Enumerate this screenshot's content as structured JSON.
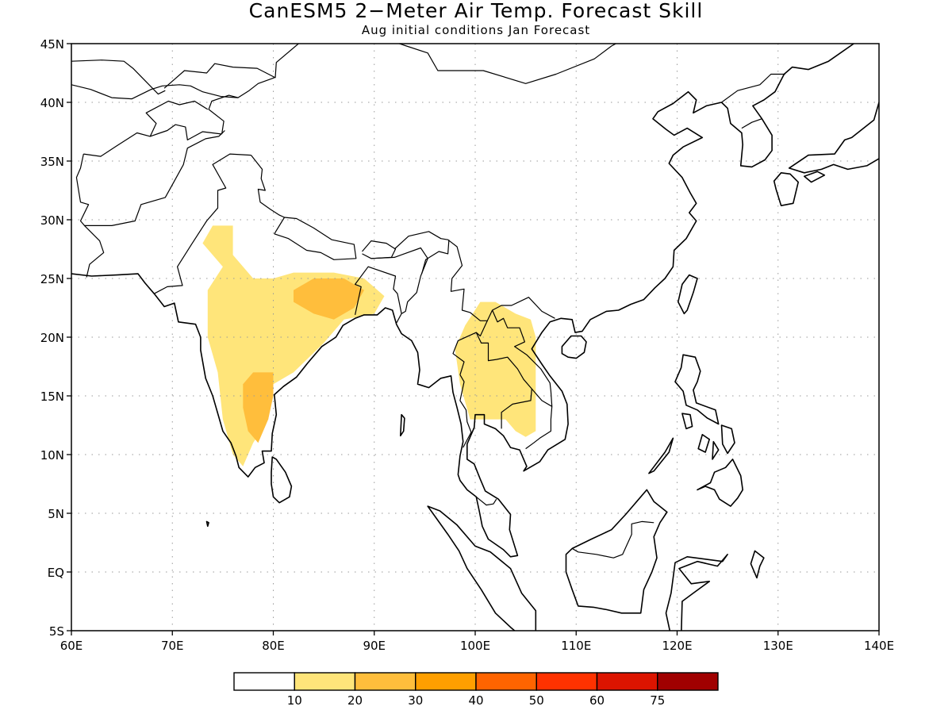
{
  "title": "CanESM5 2−Meter Air Temp. Forecast Skill",
  "subtitle": "Aug initial conditions  Jan Forecast",
  "map": {
    "lon_range": [
      60,
      140
    ],
    "lat_range": [
      -5,
      45
    ],
    "lat_ticks": [
      {
        "value": 45,
        "label": "45N"
      },
      {
        "value": 40,
        "label": "40N"
      },
      {
        "value": 35,
        "label": "35N"
      },
      {
        "value": 30,
        "label": "30N"
      },
      {
        "value": 25,
        "label": "25N"
      },
      {
        "value": 20,
        "label": "20N"
      },
      {
        "value": 15,
        "label": "15N"
      },
      {
        "value": 10,
        "label": "10N"
      },
      {
        "value": 5,
        "label": "5N"
      },
      {
        "value": 0,
        "label": "EQ"
      },
      {
        "value": -5,
        "label": "5S"
      }
    ],
    "lon_ticks": [
      {
        "value": 60,
        "label": "60E"
      },
      {
        "value": 70,
        "label": "70E"
      },
      {
        "value": 80,
        "label": "80E"
      },
      {
        "value": 90,
        "label": "90E"
      },
      {
        "value": 100,
        "label": "100E"
      },
      {
        "value": 110,
        "label": "110E"
      },
      {
        "value": 120,
        "label": "120E"
      },
      {
        "value": 130,
        "label": "130E"
      },
      {
        "value": 140,
        "label": "140E"
      }
    ],
    "gridlines": "dotted",
    "skill_regions": [
      {
        "level": 10,
        "color": "#ffe57a",
        "region": "India",
        "lonlat": [
          [
            73,
            28
          ],
          [
            74,
            29.5
          ],
          [
            76,
            29.5
          ],
          [
            76,
            27
          ],
          [
            78,
            25
          ],
          [
            80,
            25
          ],
          [
            82,
            25.5
          ],
          [
            86,
            25.5
          ],
          [
            89,
            25
          ],
          [
            91,
            23.5
          ],
          [
            90,
            22
          ],
          [
            87,
            21.5
          ],
          [
            85,
            19.5
          ],
          [
            82,
            17
          ],
          [
            80,
            16
          ],
          [
            79.5,
            13
          ],
          [
            78,
            11
          ],
          [
            77,
            9
          ],
          [
            76,
            10
          ],
          [
            75,
            13
          ],
          [
            74.5,
            17
          ],
          [
            73.5,
            20
          ],
          [
            73.5,
            24
          ],
          [
            75,
            26
          ]
        ]
      },
      {
        "level": 20,
        "color": "#ffbe3c",
        "region": "India-north",
        "lonlat": [
          [
            82,
            24
          ],
          [
            84,
            25
          ],
          [
            87,
            25
          ],
          [
            89,
            24
          ],
          [
            88,
            22.5
          ],
          [
            86,
            21.5
          ],
          [
            84,
            22
          ],
          [
            82,
            23
          ]
        ]
      },
      {
        "level": 20,
        "color": "#ffbe3c",
        "region": "India-south",
        "lonlat": [
          [
            77,
            16
          ],
          [
            78,
            17
          ],
          [
            80,
            17
          ],
          [
            80,
            15
          ],
          [
            79.5,
            13
          ],
          [
            78.5,
            11
          ],
          [
            77.5,
            12
          ],
          [
            77,
            14
          ]
        ]
      },
      {
        "level": 10,
        "color": "#ffe57a",
        "region": "Southeast-Asia",
        "lonlat": [
          [
            100.5,
            23
          ],
          [
            102,
            23
          ],
          [
            104,
            22
          ],
          [
            105.5,
            21.5
          ],
          [
            106,
            20
          ],
          [
            106,
            12
          ],
          [
            105,
            11.5
          ],
          [
            104,
            12
          ],
          [
            103,
            13
          ],
          [
            101,
            13
          ],
          [
            99.5,
            13
          ],
          [
            98.5,
            16
          ],
          [
            98,
            19
          ],
          [
            99,
            21
          ]
        ]
      }
    ],
    "coastline_features": [
      "Indian subcontinent",
      "Sri Lanka",
      "Indochina",
      "Malay Peninsula",
      "Sumatra",
      "Borneo",
      "Philippines",
      "Taiwan",
      "Hainan",
      "Korea",
      "Japan",
      "China"
    ]
  },
  "colorbar": {
    "colors": [
      "#ffffff",
      "#ffe57a",
      "#ffbe3c",
      "#ff9f00",
      "#ff6400",
      "#ff3200",
      "#dc1400",
      "#a00000"
    ],
    "labels": [
      "10",
      "20",
      "30",
      "40",
      "50",
      "60",
      "75"
    ]
  }
}
